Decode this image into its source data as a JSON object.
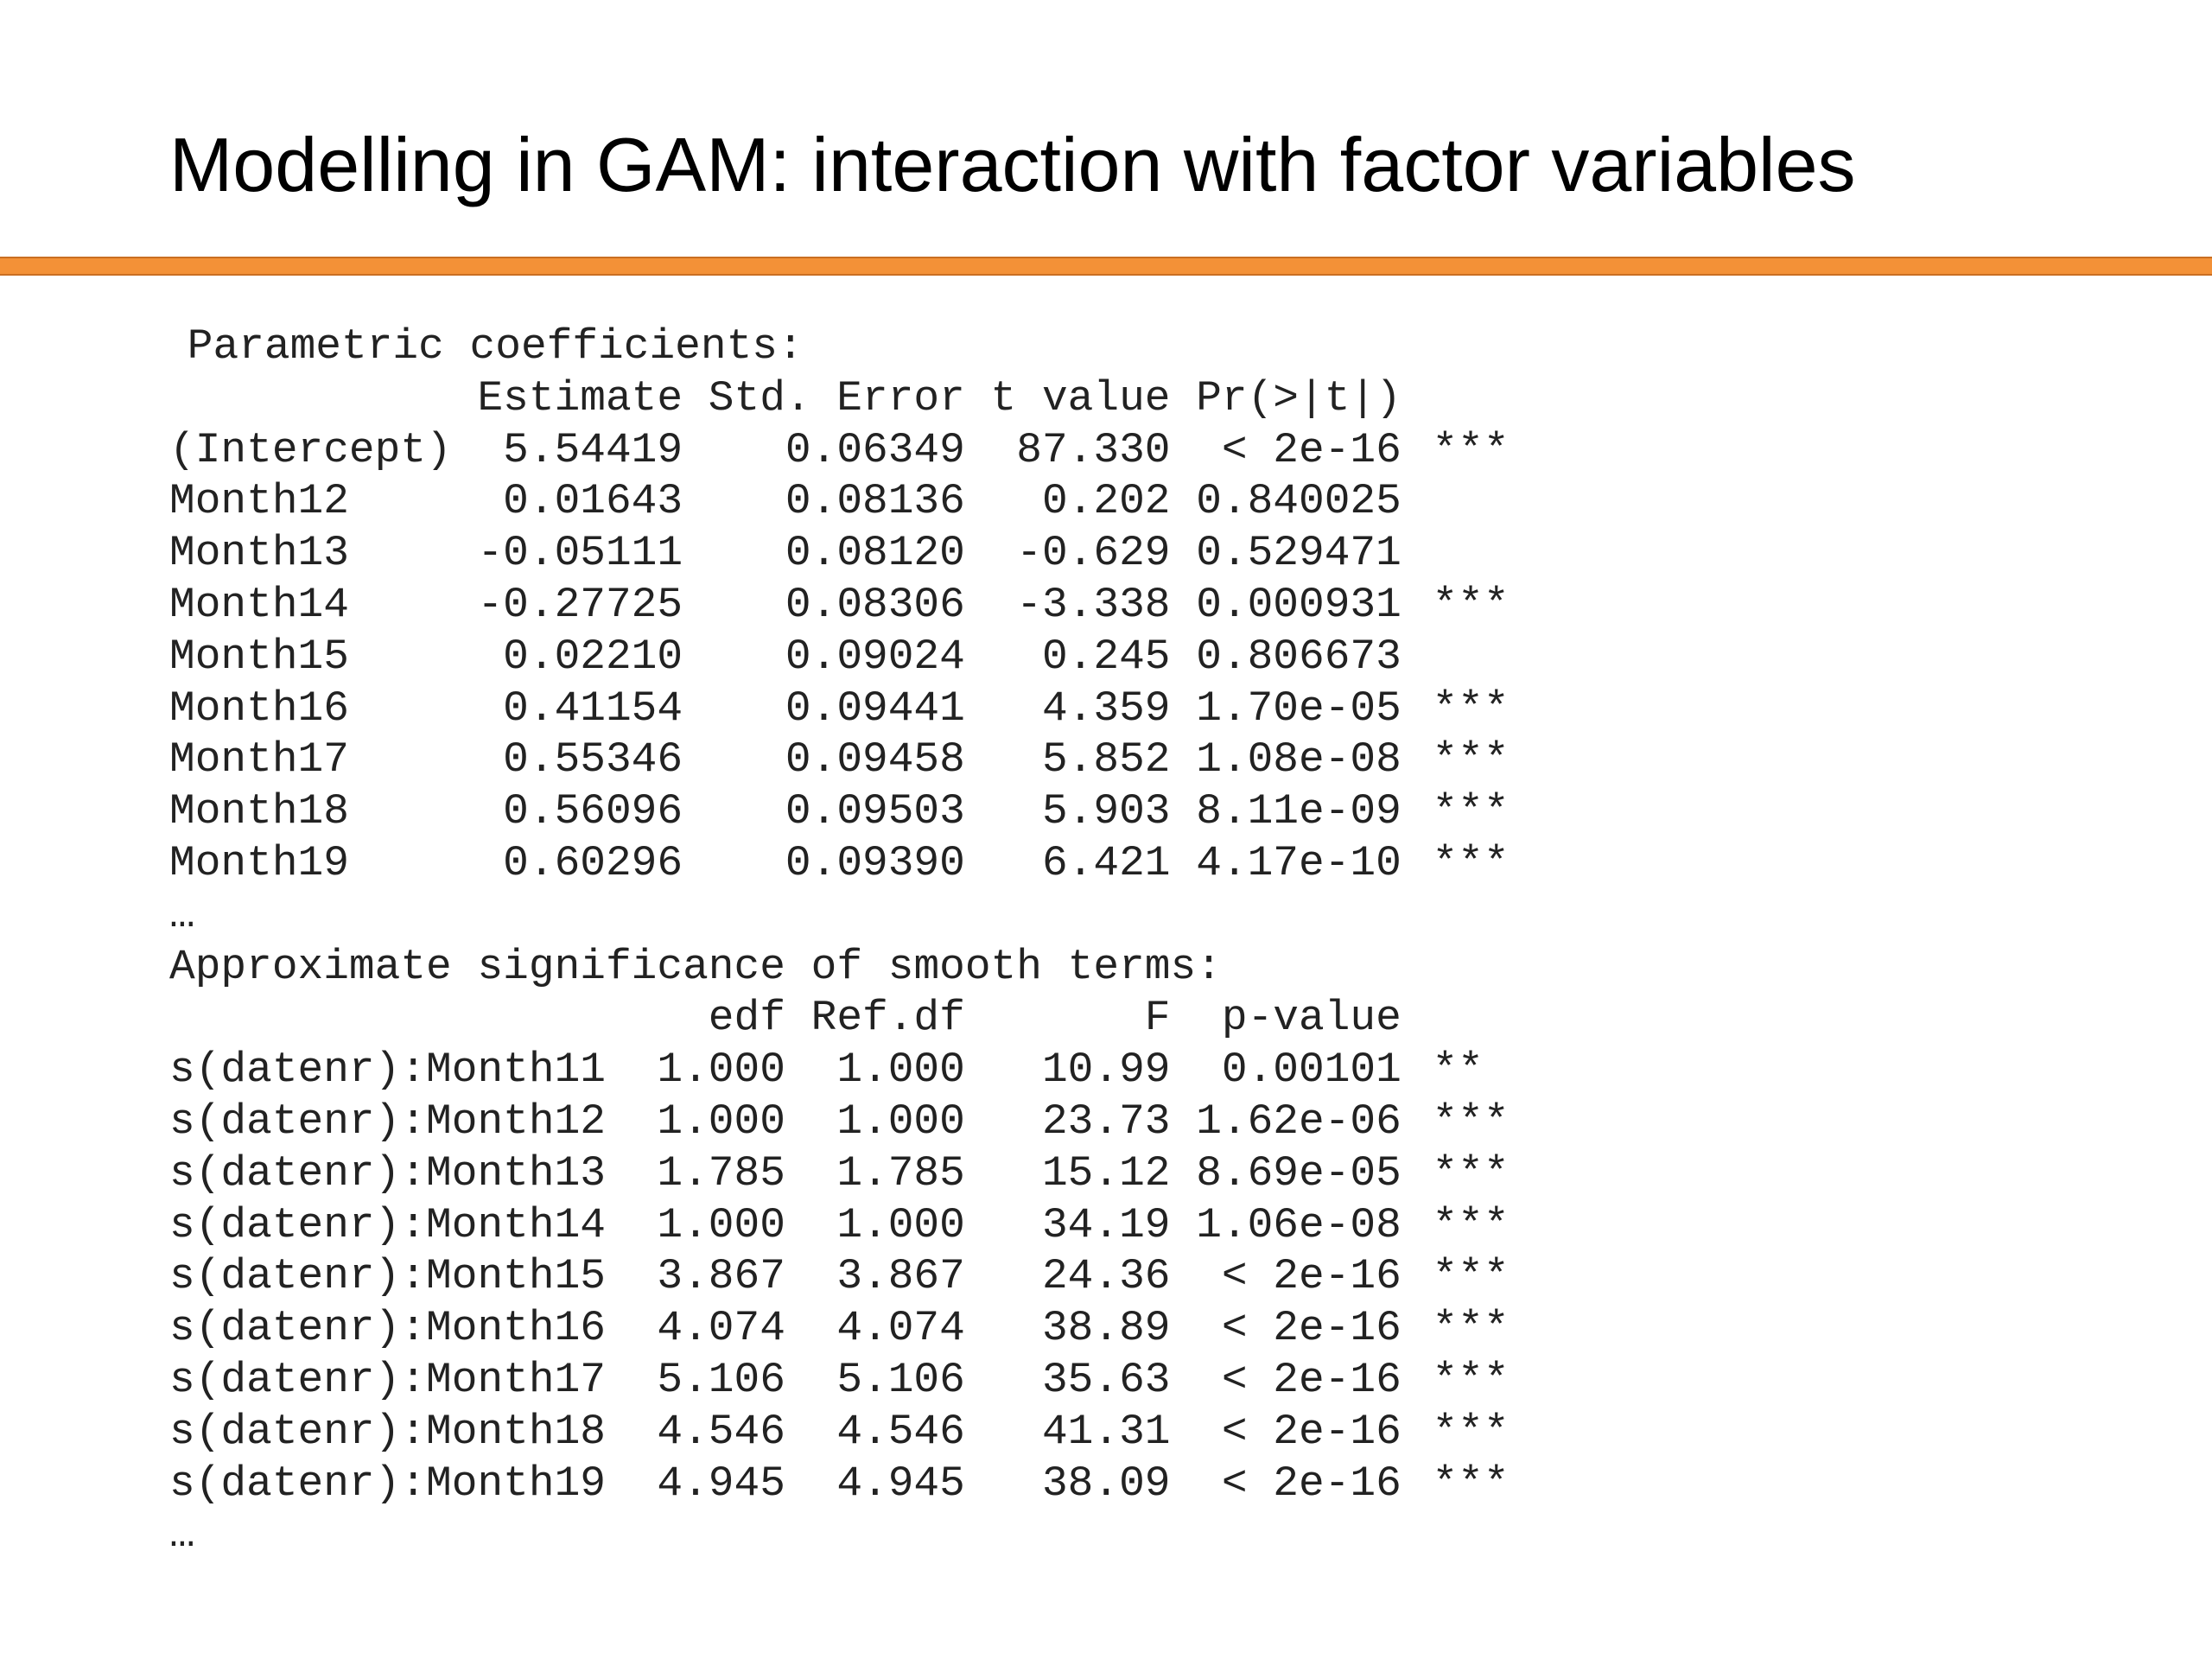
{
  "title": "Modelling in GAM: interaction with factor variables",
  "parametric": {
    "heading": "Parametric coefficients:",
    "columns": [
      "Estimate",
      "Std. Error",
      "t value",
      "Pr(>|t|)"
    ],
    "rows": [
      [
        "(Intercept)",
        "5.54419",
        "0.06349",
        "87.330",
        "< 2e-16",
        "***"
      ],
      [
        "Month12",
        "0.01643",
        "0.08136",
        "0.202",
        "0.840025"
      ],
      [
        "Month13",
        "-0.05111",
        "0.08120",
        "-0.629",
        "0.529471"
      ],
      [
        "Month14",
        "-0.27725",
        "0.08306",
        "-3.338",
        "0.000931",
        "***"
      ],
      [
        "Month15",
        "0.02210",
        "0.09024",
        "0.245",
        "0.806673"
      ],
      [
        "Month16",
        "0.41154",
        "0.09441",
        "4.359",
        "1.70e-05",
        "***"
      ],
      [
        "Month17",
        "0.55346",
        "0.09458",
        "5.852",
        "1.08e-08",
        "***"
      ],
      [
        "Month18",
        "0.56096",
        "0.09503",
        "5.903",
        "8.11e-09",
        "***"
      ],
      [
        "Month19",
        "0.60296",
        "0.09390",
        "6.421",
        "4.17e-10",
        "***"
      ]
    ],
    "ellipsis": "…"
  },
  "smooth": {
    "heading": "Approximate significance of smooth terms:",
    "columns": [
      "edf",
      "Ref.df",
      "F",
      "p-value"
    ],
    "rows": [
      [
        "s(datenr):Month11",
        "1.000",
        "1.000",
        "10.99",
        "0.00101",
        "**"
      ],
      [
        "s(datenr):Month12",
        "1.000",
        "1.000",
        "23.73",
        "1.62e-06",
        "***"
      ],
      [
        "s(datenr):Month13",
        "1.785",
        "1.785",
        "15.12",
        "8.69e-05",
        "***"
      ],
      [
        "s(datenr):Month14",
        "1.000",
        "1.000",
        "34.19",
        "1.06e-08",
        "***"
      ],
      [
        "s(datenr):Month15",
        "3.867",
        "3.867",
        "24.36",
        "< 2e-16",
        "***"
      ],
      [
        "s(datenr):Month16",
        "4.074",
        "4.074",
        "38.89",
        "< 2e-16",
        "***"
      ],
      [
        "s(datenr):Month17",
        "5.106",
        "5.106",
        "35.63",
        "< 2e-16",
        "***"
      ],
      [
        "s(datenr):Month18",
        "4.546",
        "4.546",
        "41.31",
        "< 2e-16",
        "***"
      ],
      [
        "s(datenr):Month19",
        "4.945",
        "4.945",
        "38.09",
        "< 2e-16",
        "***"
      ]
    ],
    "ellipsis": "…"
  }
}
